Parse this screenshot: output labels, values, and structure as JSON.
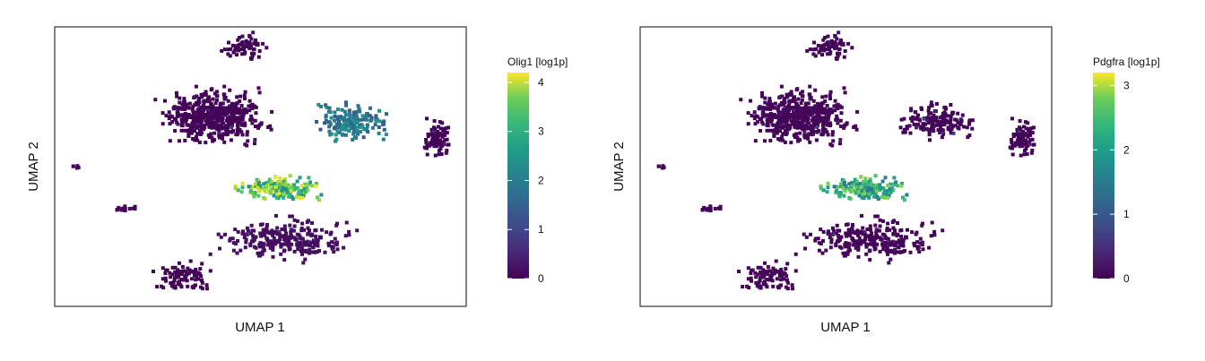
{
  "chart_data": [
    {
      "type": "scatter",
      "subtype": "hexbin",
      "xlabel": "UMAP 1",
      "ylabel": "UMAP 2",
      "legend_title": "Olig1 [log1p]",
      "colorbar_ticks": [
        "0",
        "1",
        "2",
        "3",
        "4"
      ],
      "color_range": [
        0,
        4.2
      ],
      "colormap": "viridis",
      "grid": false,
      "legend_position": "right",
      "clusters": [
        {
          "id": "top-small",
          "x": 0.46,
          "y": 0.93,
          "value": 0.05
        },
        {
          "id": "big-left",
          "x": 0.39,
          "y": 0.68,
          "value": 0.05
        },
        {
          "id": "mid-right",
          "x": 0.72,
          "y": 0.66,
          "value": 2.0
        },
        {
          "id": "far-right",
          "x": 0.93,
          "y": 0.6,
          "value": 0.05
        },
        {
          "id": "far-left-dot",
          "x": 0.05,
          "y": 0.5,
          "value": 0.05
        },
        {
          "id": "center-opc",
          "x": 0.55,
          "y": 0.42,
          "value": 3.6
        },
        {
          "id": "left-small",
          "x": 0.17,
          "y": 0.35,
          "value": 0.05
        },
        {
          "id": "lower-center",
          "x": 0.56,
          "y": 0.24,
          "value": 0.15
        },
        {
          "id": "bottom-left",
          "x": 0.31,
          "y": 0.11,
          "value": 0.05
        }
      ]
    },
    {
      "type": "scatter",
      "subtype": "hexbin",
      "xlabel": "UMAP 1",
      "ylabel": "UMAP 2",
      "legend_title": "Pdgfra [log1p]",
      "colorbar_ticks": [
        "0",
        "1",
        "2",
        "3"
      ],
      "color_range": [
        0,
        3.2
      ],
      "colormap": "viridis",
      "grid": false,
      "legend_position": "right",
      "clusters": [
        {
          "id": "top-small",
          "x": 0.46,
          "y": 0.93,
          "value": 0.05
        },
        {
          "id": "big-left",
          "x": 0.39,
          "y": 0.68,
          "value": 0.05
        },
        {
          "id": "mid-right",
          "x": 0.72,
          "y": 0.66,
          "value": 0.05
        },
        {
          "id": "far-right",
          "x": 0.93,
          "y": 0.6,
          "value": 0.05
        },
        {
          "id": "far-left-dot",
          "x": 0.05,
          "y": 0.5,
          "value": 0.05
        },
        {
          "id": "center-opc",
          "x": 0.55,
          "y": 0.42,
          "value": 2.3
        },
        {
          "id": "left-small",
          "x": 0.17,
          "y": 0.35,
          "value": 0.05
        },
        {
          "id": "lower-center",
          "x": 0.56,
          "y": 0.24,
          "value": 0.05
        },
        {
          "id": "bottom-left",
          "x": 0.31,
          "y": 0.11,
          "value": 0.05
        }
      ]
    }
  ]
}
